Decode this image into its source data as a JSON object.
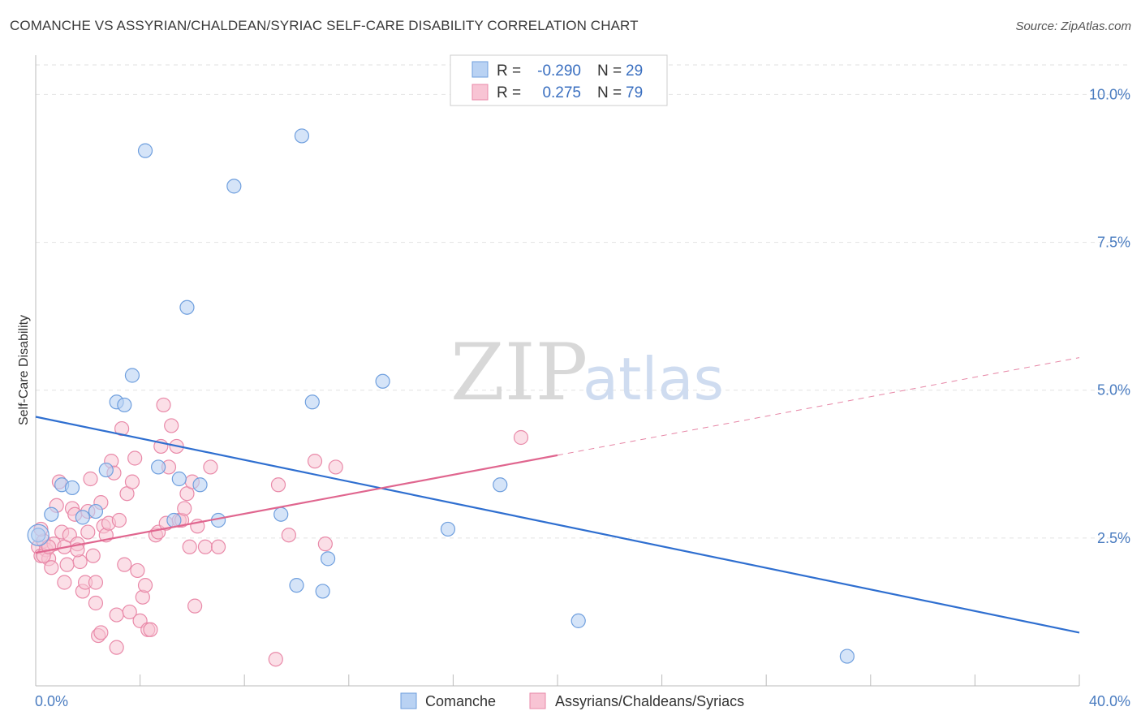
{
  "title": "COMANCHE VS ASSYRIAN/CHALDEAN/SYRIAC SELF-CARE DISABILITY CORRELATION CHART",
  "source": "Source: ZipAtlas.com",
  "watermark": {
    "zip": "ZIP",
    "atlas": "atlas"
  },
  "colors": {
    "blue_fill": "#b9d2f3",
    "blue_stroke": "#6f9fde",
    "blue_line": "#2f6fd0",
    "pink_fill": "#f8c4d4",
    "pink_stroke": "#e98aa9",
    "pink_line": "#e0668f",
    "tick_text": "#4a7cc0",
    "grid": "#e2e2e2"
  },
  "legend": {
    "rows": [
      {
        "r_label": "R = ",
        "r_value": "-0.290",
        "n_label": "N = ",
        "n_value": "29"
      },
      {
        "r_label": "R = ",
        "r_value": " 0.275",
        "n_label": "N = ",
        "n_value": "79"
      }
    ]
  },
  "bottom_legend": [
    "Comanche",
    "Assyrians/Chaldeans/Syriacs"
  ],
  "chart_data": {
    "type": "scatter",
    "title": "COMANCHE VS ASSYRIAN/CHALDEAN/SYRIAC SELF-CARE DISABILITY CORRELATION CHART",
    "xlabel": "",
    "ylabel": "Self-Care Disability",
    "xlim": [
      0,
      40
    ],
    "ylim": [
      0,
      10.5
    ],
    "x_tick_labels": [
      "0.0%",
      "40.0%"
    ],
    "y_ticks": [
      2.5,
      5.0,
      7.5,
      10.0
    ],
    "y_tick_labels": [
      "2.5%",
      "5.0%",
      "7.5%",
      "10.0%"
    ],
    "grid": true,
    "legend_position": "top-center",
    "series": [
      {
        "name": "Comanche",
        "R": -0.29,
        "N": 29,
        "trend": {
          "x0": 0,
          "y0": 4.55,
          "x1": 40,
          "y1": 0.9
        },
        "points": [
          [
            0.1,
            2.55
          ],
          [
            0.6,
            2.9
          ],
          [
            1.0,
            3.4
          ],
          [
            1.4,
            3.35
          ],
          [
            1.8,
            2.85
          ],
          [
            2.3,
            2.95
          ],
          [
            2.7,
            3.65
          ],
          [
            3.1,
            4.8
          ],
          [
            3.4,
            4.75
          ],
          [
            3.7,
            5.25
          ],
          [
            4.2,
            9.05
          ],
          [
            4.7,
            3.7
          ],
          [
            5.3,
            2.8
          ],
          [
            5.5,
            3.5
          ],
          [
            5.8,
            6.4
          ],
          [
            6.3,
            3.4
          ],
          [
            7.0,
            2.8
          ],
          [
            7.6,
            8.45
          ],
          [
            9.4,
            2.9
          ],
          [
            10.2,
            9.3
          ],
          [
            10.0,
            1.7
          ],
          [
            10.6,
            4.8
          ],
          [
            11.0,
            1.6
          ],
          [
            11.2,
            2.15
          ],
          [
            13.3,
            5.15
          ],
          [
            15.8,
            2.65
          ],
          [
            17.8,
            3.4
          ],
          [
            20.8,
            1.1
          ],
          [
            31.1,
            0.5
          ]
        ]
      },
      {
        "name": "Assyrians/Chaldeans/Syriacs",
        "R": 0.275,
        "N": 79,
        "trend": {
          "x0": 0,
          "y0": 2.25,
          "x1": 20,
          "y1": 3.9,
          "dash_x1": 40,
          "dash_y1": 5.55
        },
        "points": [
          [
            0.1,
            2.35
          ],
          [
            0.2,
            2.2
          ],
          [
            0.3,
            2.45
          ],
          [
            0.4,
            2.3
          ],
          [
            0.5,
            2.15
          ],
          [
            0.6,
            2.0
          ],
          [
            0.7,
            2.4
          ],
          [
            0.8,
            3.05
          ],
          [
            0.9,
            3.45
          ],
          [
            1.0,
            2.6
          ],
          [
            1.1,
            2.35
          ],
          [
            1.2,
            2.05
          ],
          [
            1.3,
            2.55
          ],
          [
            1.4,
            3.0
          ],
          [
            1.5,
            2.9
          ],
          [
            1.6,
            2.4
          ],
          [
            1.7,
            2.1
          ],
          [
            1.8,
            1.6
          ],
          [
            1.9,
            1.75
          ],
          [
            2.0,
            2.6
          ],
          [
            2.1,
            3.5
          ],
          [
            2.2,
            2.2
          ],
          [
            2.3,
            1.4
          ],
          [
            2.4,
            0.85
          ],
          [
            2.5,
            3.1
          ],
          [
            2.6,
            2.7
          ],
          [
            2.7,
            2.55
          ],
          [
            2.8,
            2.75
          ],
          [
            2.9,
            3.8
          ],
          [
            3.0,
            3.6
          ],
          [
            3.1,
            1.2
          ],
          [
            3.2,
            2.8
          ],
          [
            3.3,
            4.35
          ],
          [
            3.4,
            2.05
          ],
          [
            3.5,
            3.25
          ],
          [
            3.6,
            1.25
          ],
          [
            3.7,
            3.45
          ],
          [
            3.8,
            3.85
          ],
          [
            3.9,
            1.95
          ],
          [
            4.0,
            1.1
          ],
          [
            4.1,
            1.5
          ],
          [
            4.2,
            1.7
          ],
          [
            4.3,
            0.95
          ],
          [
            4.4,
            0.95
          ],
          [
            4.6,
            2.55
          ],
          [
            4.7,
            2.6
          ],
          [
            4.8,
            4.05
          ],
          [
            4.9,
            4.75
          ],
          [
            5.0,
            2.75
          ],
          [
            5.1,
            3.7
          ],
          [
            5.2,
            4.4
          ],
          [
            5.4,
            4.05
          ],
          [
            5.5,
            2.8
          ],
          [
            5.6,
            2.8
          ],
          [
            5.7,
            3.0
          ],
          [
            5.8,
            3.25
          ],
          [
            5.9,
            2.35
          ],
          [
            6.0,
            3.45
          ],
          [
            6.1,
            1.35
          ],
          [
            6.2,
            2.7
          ],
          [
            6.5,
            2.35
          ],
          [
            6.7,
            3.7
          ],
          [
            7.0,
            2.35
          ],
          [
            9.2,
            0.45
          ],
          [
            9.3,
            3.4
          ],
          [
            9.7,
            2.55
          ],
          [
            10.7,
            3.8
          ],
          [
            11.1,
            2.4
          ],
          [
            11.5,
            3.7
          ],
          [
            18.6,
            4.2
          ],
          [
            0.2,
            2.65
          ],
          [
            0.3,
            2.2
          ],
          [
            0.5,
            2.35
          ],
          [
            1.6,
            2.3
          ],
          [
            2.3,
            1.75
          ],
          [
            2.5,
            0.9
          ],
          [
            3.1,
            0.65
          ],
          [
            2.0,
            2.95
          ],
          [
            1.1,
            1.75
          ]
        ]
      }
    ]
  }
}
